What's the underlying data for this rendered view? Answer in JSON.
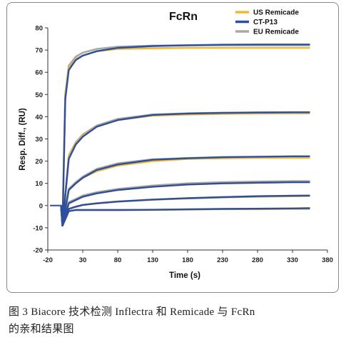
{
  "chart_data": {
    "type": "line",
    "title": "FcRn",
    "xlabel": "Time (s)",
    "ylabel": "Resp. Diff., (RU)",
    "xlim": [
      -20,
      380
    ],
    "ylim": [
      -20,
      80
    ],
    "xticks": [
      "-20",
      "30",
      "80",
      "130",
      "180",
      "230",
      "280",
      "330",
      "380"
    ],
    "yticks": [
      "-20",
      "-10",
      "0",
      "10",
      "20",
      "30",
      "40",
      "50",
      "60",
      "70",
      "80"
    ],
    "grid": false,
    "legend_position": "top-right",
    "injection_time": 0,
    "baseline_range": [
      -20,
      0
    ],
    "end_time": 355,
    "dip": {
      "x": 1,
      "y": -9
    },
    "series": [
      {
        "name": "US Remicade",
        "color": "#f2b830",
        "curves": [
          {
            "plateau": 71.0,
            "x": [
              0,
              5,
              10,
              20,
              30,
              50,
              80,
              130,
              180,
              230,
              280,
              330,
              355
            ],
            "y": [
              -9,
              50,
              62,
              66,
              67.5,
              69.5,
              70.5,
              70.8,
              71,
              71,
              71,
              71,
              71
            ]
          },
          {
            "plateau": 41.5,
            "x": [
              0,
              10,
              20,
              30,
              50,
              80,
              130,
              180,
              230,
              280,
              330,
              355
            ],
            "y": [
              -9,
              22,
              28,
              31.5,
              35.5,
              38.5,
              40.5,
              41,
              41.3,
              41.4,
              41.5,
              41.5
            ]
          },
          {
            "plateau": 21.5,
            "x": [
              0,
              10,
              20,
              30,
              50,
              80,
              130,
              180,
              230,
              280,
              330,
              355
            ],
            "y": [
              -9,
              7,
              10,
              12.5,
              15.5,
              18,
              20,
              21,
              21.3,
              21.5,
              21.5,
              21.5
            ]
          },
          {
            "plateau": 10.5,
            "x": [
              0,
              10,
              20,
              30,
              50,
              80,
              130,
              180,
              230,
              280,
              330,
              355
            ],
            "y": [
              -9,
              1,
              2.5,
              4,
              5.5,
              7,
              8.5,
              9.5,
              10,
              10.3,
              10.5,
              10.5
            ]
          },
          {
            "plateau": 4.3,
            "x": [
              0,
              10,
              20,
              30,
              50,
              80,
              130,
              180,
              230,
              280,
              330,
              355
            ],
            "y": [
              -9,
              -1.5,
              -0.5,
              0.3,
              1,
              1.8,
              2.6,
              3.2,
              3.7,
              4,
              4.2,
              4.3
            ]
          },
          {
            "plateau": -1.5,
            "x": [
              0,
              10,
              20,
              30,
              50,
              80,
              130,
              180,
              230,
              280,
              330,
              355
            ],
            "y": [
              -9,
              -2.5,
              -2,
              -2,
              -2,
              -2,
              -2,
              -1.8,
              -1.6,
              -1.6,
              -1.5,
              -1.5
            ]
          }
        ]
      },
      {
        "name": "CT-P13",
        "color": "#2d4fa0",
        "curves": [
          {
            "plateau": 72.5,
            "x": [
              0,
              5,
              10,
              20,
              30,
              50,
              80,
              130,
              180,
              230,
              280,
              330,
              355
            ],
            "y": [
              -9,
              48,
              61,
              65.5,
              67.5,
              69.5,
              71,
              71.8,
              72.2,
              72.4,
              72.5,
              72.5,
              72.5
            ]
          },
          {
            "plateau": 42.0,
            "x": [
              0,
              10,
              20,
              30,
              50,
              80,
              130,
              180,
              230,
              280,
              330,
              355
            ],
            "y": [
              -9,
              21,
              27.5,
              31,
              35.5,
              38.5,
              40.8,
              41.4,
              41.7,
              41.9,
              42,
              42
            ]
          },
          {
            "plateau": 22.2,
            "x": [
              0,
              10,
              20,
              30,
              50,
              80,
              130,
              180,
              230,
              280,
              330,
              355
            ],
            "y": [
              -9,
              7,
              10,
              12.5,
              16,
              18.5,
              20.6,
              21.3,
              21.8,
              22,
              22.2,
              22.2
            ]
          },
          {
            "plateau": 10.5,
            "x": [
              0,
              10,
              20,
              30,
              50,
              80,
              130,
              180,
              230,
              280,
              330,
              355
            ],
            "y": [
              -9,
              1,
              2.5,
              4,
              5.5,
              7,
              8.5,
              9.5,
              10,
              10.3,
              10.5,
              10.5
            ]
          },
          {
            "plateau": 4.5,
            "x": [
              0,
              10,
              20,
              30,
              50,
              80,
              130,
              180,
              230,
              280,
              330,
              355
            ],
            "y": [
              -9,
              -1.5,
              -0.5,
              0.3,
              1,
              1.8,
              2.7,
              3.3,
              3.8,
              4.2,
              4.4,
              4.5
            ]
          },
          {
            "plateau": -1.2,
            "x": [
              0,
              10,
              20,
              30,
              50,
              80,
              130,
              180,
              230,
              280,
              330,
              355
            ],
            "y": [
              -9,
              -2.5,
              -2,
              -2,
              -2,
              -2,
              -1.9,
              -1.7,
              -1.5,
              -1.4,
              -1.3,
              -1.2
            ]
          }
        ]
      },
      {
        "name": "EU Remicade",
        "color": "#a8a8a8",
        "curves": [
          {
            "plateau": 72.2,
            "x": [
              0,
              5,
              10,
              20,
              30,
              50,
              80,
              130,
              180,
              230,
              280,
              330,
              355
            ],
            "y": [
              -9,
              50,
              63,
              67,
              68.8,
              70.5,
              71.5,
              72,
              72.1,
              72.2,
              72.2,
              72.2,
              72.2
            ]
          },
          {
            "plateau": 42.0,
            "x": [
              0,
              10,
              20,
              30,
              50,
              80,
              130,
              180,
              230,
              280,
              330,
              355
            ],
            "y": [
              -9,
              22.5,
              28.5,
              32,
              36,
              39,
              41,
              41.5,
              41.8,
              41.9,
              42,
              42
            ]
          },
          {
            "plateau": 22.0,
            "x": [
              0,
              10,
              20,
              30,
              50,
              80,
              130,
              180,
              230,
              280,
              330,
              355
            ],
            "y": [
              -9,
              7.5,
              10.5,
              13,
              16.5,
              19,
              20.8,
              21.4,
              21.7,
              21.9,
              22,
              22
            ]
          },
          {
            "plateau": 11.0,
            "x": [
              0,
              10,
              20,
              30,
              50,
              80,
              130,
              180,
              230,
              280,
              330,
              355
            ],
            "y": [
              -9,
              1.5,
              3,
              4.5,
              6,
              7.5,
              9,
              10,
              10.5,
              10.8,
              11,
              11
            ]
          },
          {
            "plateau": 4.5,
            "x": [
              0,
              10,
              20,
              30,
              50,
              80,
              130,
              180,
              230,
              280,
              330,
              355
            ],
            "y": [
              -9,
              -1.5,
              -0.5,
              0.3,
              1,
              1.8,
              2.7,
              3.3,
              3.8,
              4.2,
              4.4,
              4.5
            ]
          },
          {
            "plateau": -1.2,
            "x": [
              0,
              10,
              20,
              30,
              50,
              80,
              130,
              180,
              230,
              280,
              330,
              355
            ],
            "y": [
              -9,
              -2.5,
              -2,
              -2,
              -2,
              -2,
              -1.9,
              -1.7,
              -1.5,
              -1.4,
              -1.3,
              -1.2
            ]
          }
        ]
      }
    ]
  },
  "caption": {
    "line1": "图 3 Biacore 技术检测 Inflectra 和 Remicade 与 FcRn",
    "line2": "的亲和结果图"
  }
}
